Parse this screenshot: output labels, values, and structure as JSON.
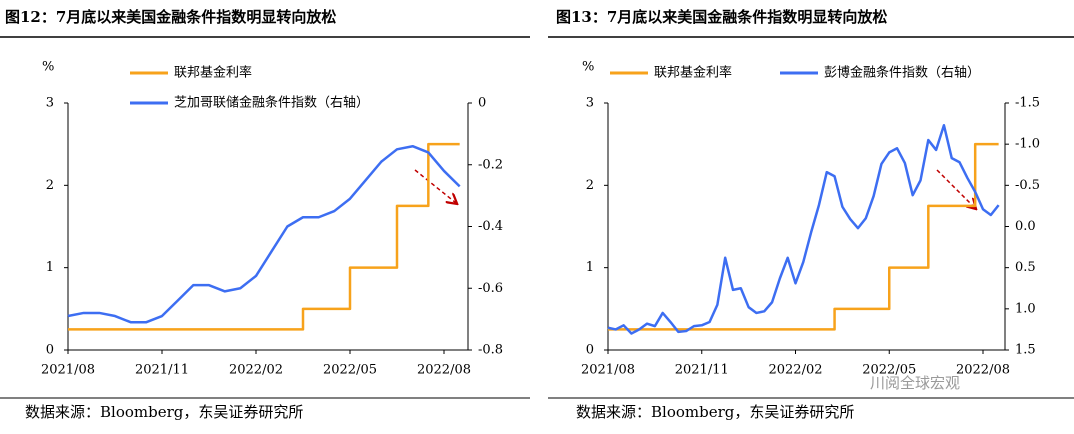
{
  "chart_data": [
    {
      "type": "line",
      "title": "图12：7月底以来美国金融条件指数明显转向放松",
      "y_label": "%",
      "source": "数据来源：Bloomberg，东吴证券研究所",
      "categories": [
        "2021/08",
        null,
        null,
        null,
        null,
        null,
        "2021/11",
        null,
        null,
        null,
        null,
        null,
        "2022/02",
        null,
        null,
        null,
        null,
        null,
        "2022/05",
        null,
        null,
        null,
        null,
        null,
        "2022/08",
        null
      ],
      "series": [
        {
          "name": "联邦基金利率",
          "color": "#f7a21b",
          "step": true,
          "values": [
            0.25,
            0.25,
            0.25,
            0.25,
            0.25,
            0.25,
            0.25,
            0.25,
            0.25,
            0.25,
            0.25,
            0.25,
            0.25,
            0.25,
            0.25,
            0.5,
            0.5,
            0.5,
            1.0,
            1.0,
            1.0,
            1.75,
            1.75,
            2.5,
            2.5,
            2.5
          ]
        },
        {
          "name": "芝加哥联储金融条件指数（右轴）",
          "color": "#3d6ef2",
          "axis": "y2",
          "values": [
            -0.69,
            -0.68,
            -0.68,
            -0.69,
            -0.71,
            -0.71,
            -0.69,
            -0.64,
            -0.59,
            -0.59,
            -0.61,
            -0.6,
            -0.56,
            -0.48,
            -0.4,
            -0.37,
            -0.37,
            -0.35,
            -0.31,
            -0.25,
            -0.19,
            -0.15,
            -0.14,
            -0.16,
            -0.22,
            -0.27
          ]
        }
      ],
      "ylim": [
        0,
        3
      ],
      "yticks": [
        0,
        1,
        2,
        3
      ],
      "y2lim": [
        -0.8,
        0
      ],
      "y2ticks": [
        -0.8,
        -0.6,
        -0.4,
        -0.2,
        0
      ]
    },
    {
      "type": "line",
      "title": "图13：7月底以来美国金融条件指数明显转向放松",
      "y_label": "%",
      "source": "数据来源：Bloomberg，东吴证券研究所",
      "watermark": "川阅全球宏观",
      "categories": [
        "2021/08",
        null,
        null,
        null,
        null,
        null,
        null,
        null,
        null,
        null,
        null,
        null,
        "2021/11",
        null,
        null,
        null,
        null,
        null,
        null,
        null,
        null,
        null,
        null,
        null,
        "2022/02",
        null,
        null,
        null,
        null,
        null,
        null,
        null,
        null,
        null,
        null,
        null,
        "2022/05",
        null,
        null,
        null,
        null,
        null,
        null,
        null,
        null,
        null,
        null,
        null,
        "2022/08",
        null,
        null
      ],
      "series": [
        {
          "name": "联邦基金利率",
          "color": "#f7a21b",
          "step": true,
          "values": [
            0.25,
            0.25,
            0.25,
            0.25,
            0.25,
            0.25,
            0.25,
            0.25,
            0.25,
            0.25,
            0.25,
            0.25,
            0.25,
            0.25,
            0.25,
            0.25,
            0.25,
            0.25,
            0.25,
            0.25,
            0.25,
            0.25,
            0.25,
            0.25,
            0.25,
            0.25,
            0.25,
            0.25,
            0.25,
            0.5,
            0.5,
            0.5,
            0.5,
            0.5,
            0.5,
            0.5,
            1.0,
            1.0,
            1.0,
            1.0,
            1.0,
            1.75,
            1.75,
            1.75,
            1.75,
            1.75,
            1.75,
            2.5,
            2.5,
            2.5,
            2.5
          ]
        },
        {
          "name": "彭博金融条件指数（右轴）",
          "color": "#3d6ef2",
          "axis": "y2",
          "values": [
            1.23,
            1.25,
            1.2,
            1.3,
            1.25,
            1.18,
            1.21,
            1.05,
            1.16,
            1.28,
            1.27,
            1.21,
            1.2,
            1.16,
            0.95,
            0.38,
            0.77,
            0.75,
            0.98,
            1.05,
            1.03,
            0.92,
            0.63,
            0.38,
            0.69,
            0.43,
            0.07,
            -0.26,
            -0.66,
            -0.61,
            -0.24,
            -0.09,
            0.02,
            -0.1,
            -0.37,
            -0.76,
            -0.9,
            -0.95,
            -0.77,
            -0.38,
            -0.56,
            -1.05,
            -0.93,
            -1.23,
            -0.83,
            -0.78,
            -0.59,
            -0.42,
            -0.21,
            -0.14,
            -0.26
          ]
        }
      ],
      "ylim": [
        0,
        3
      ],
      "yticks": [
        0,
        1,
        2,
        3
      ],
      "y2lim": [
        1.5,
        -1.5
      ],
      "y2ticks": [
        1.5,
        {
          "value": 1.0,
          "label": "1.0"
        },
        0.5,
        {
          "value": 0.0,
          "label": "0.0"
        },
        -0.5,
        {
          "value": -1.0,
          "label": "-1.0"
        },
        -1.5
      ]
    }
  ]
}
